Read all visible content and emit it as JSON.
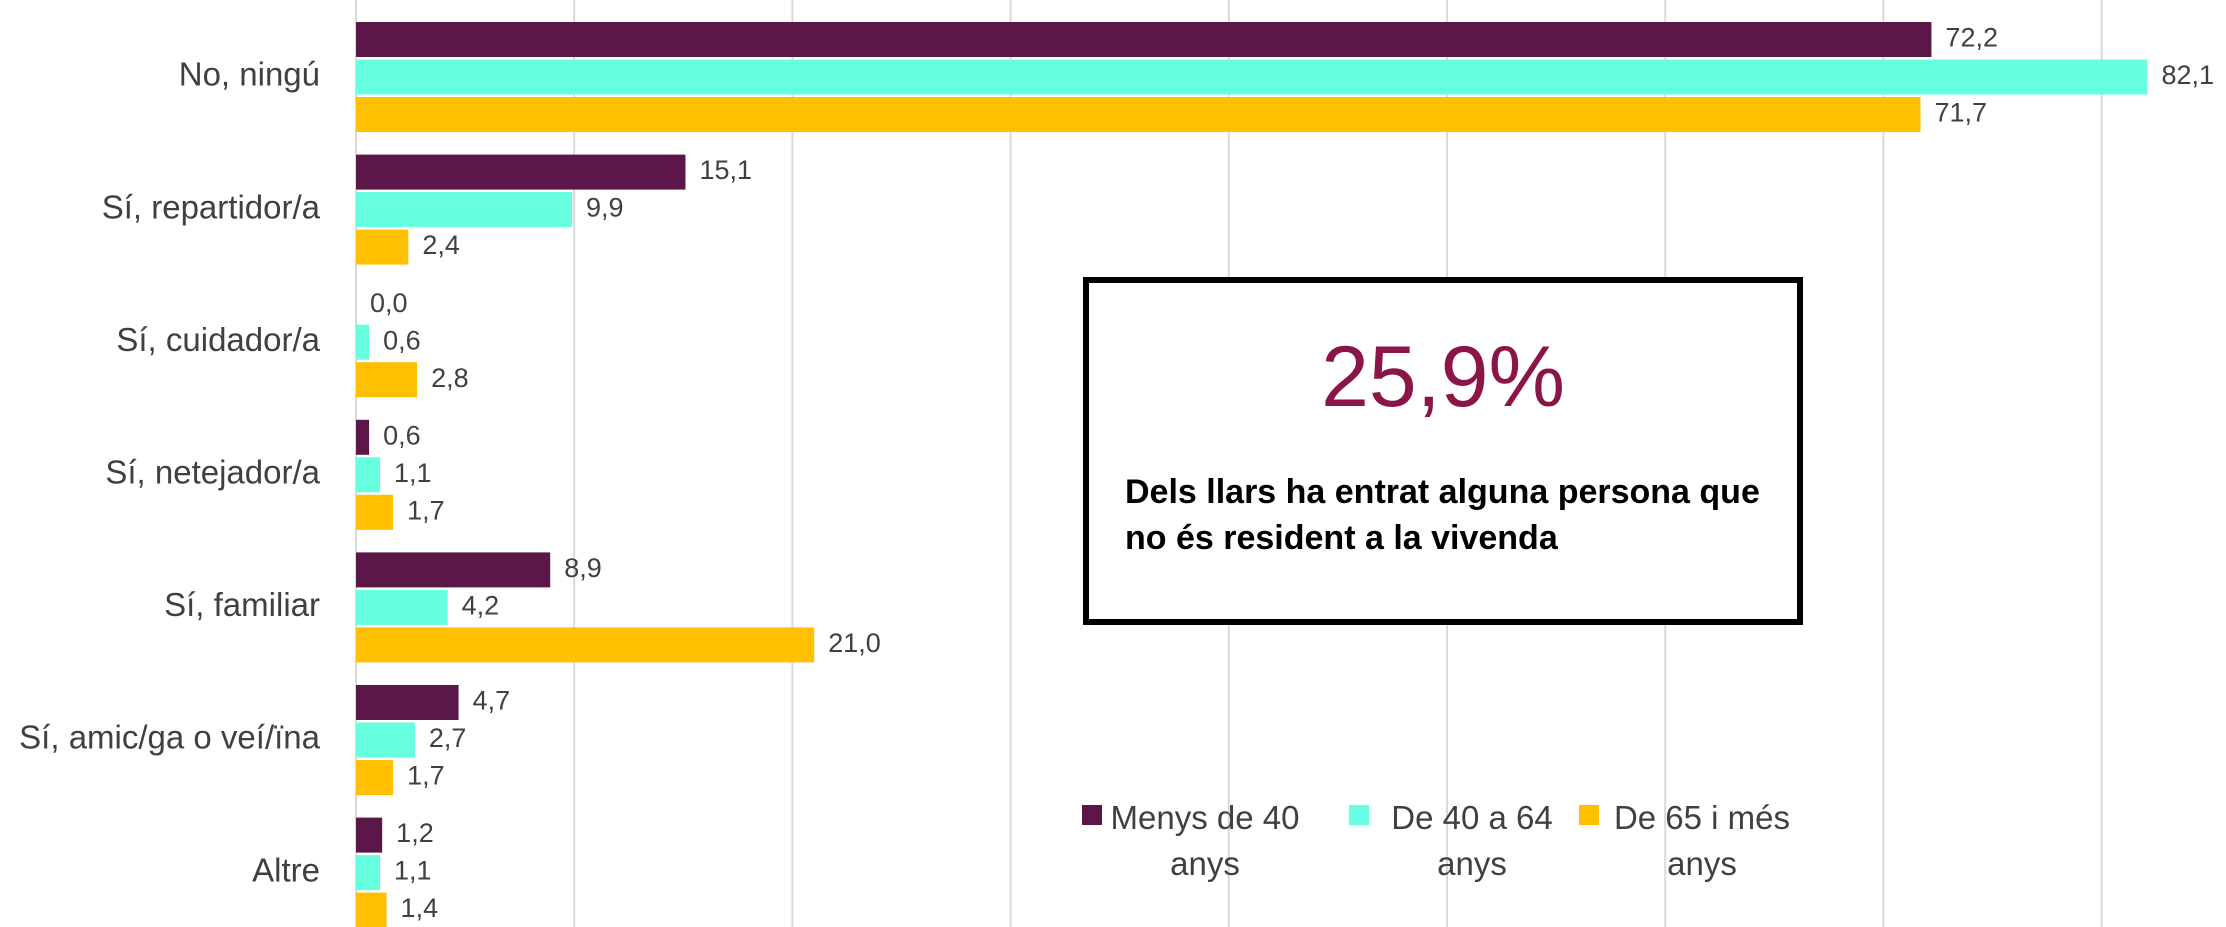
{
  "chart_data": {
    "type": "bar",
    "orientation": "horizontal",
    "categories": [
      "No, ningú",
      "Sí, repartidor/a",
      "Sí, cuidador/a",
      "Sí, netejador/a",
      "Sí, familiar",
      "Sí, amic/ga o veí/ïna",
      "Altre"
    ],
    "series": [
      {
        "name": "Menys de 40 anys",
        "color": "#5b1747",
        "values": [
          72.2,
          15.1,
          0.0,
          0.6,
          8.9,
          4.7,
          1.2
        ],
        "value_labels": [
          "72,2",
          "15,1",
          "0,0",
          "0,6",
          "8,9",
          "4,7",
          "1,2"
        ]
      },
      {
        "name": "De 40 a 64 anys",
        "color": "#66ffe0",
        "values": [
          82.1,
          9.9,
          0.6,
          1.1,
          4.2,
          2.7,
          1.1
        ],
        "value_labels": [
          "82,1",
          "9,9",
          "0,6",
          "1,1",
          "4,2",
          "2,7",
          "1,1"
        ]
      },
      {
        "name": "De 65 i més anys",
        "color": "#ffc000",
        "values": [
          71.7,
          2.4,
          2.8,
          1.7,
          21.0,
          1.7,
          1.4
        ],
        "value_labels": [
          "71,7",
          "2,4",
          "2,8",
          "1,7",
          "21,0",
          "1,7",
          "1,4"
        ]
      }
    ],
    "xlim": [
      0,
      85.7
    ],
    "xticks": [
      0,
      10,
      20,
      30,
      40,
      50,
      60,
      70,
      80
    ],
    "grid": true,
    "annotation": {
      "title": "25,9%",
      "text": "Dels llars ha entrat alguna persona que no és resident a la  vivenda"
    }
  }
}
